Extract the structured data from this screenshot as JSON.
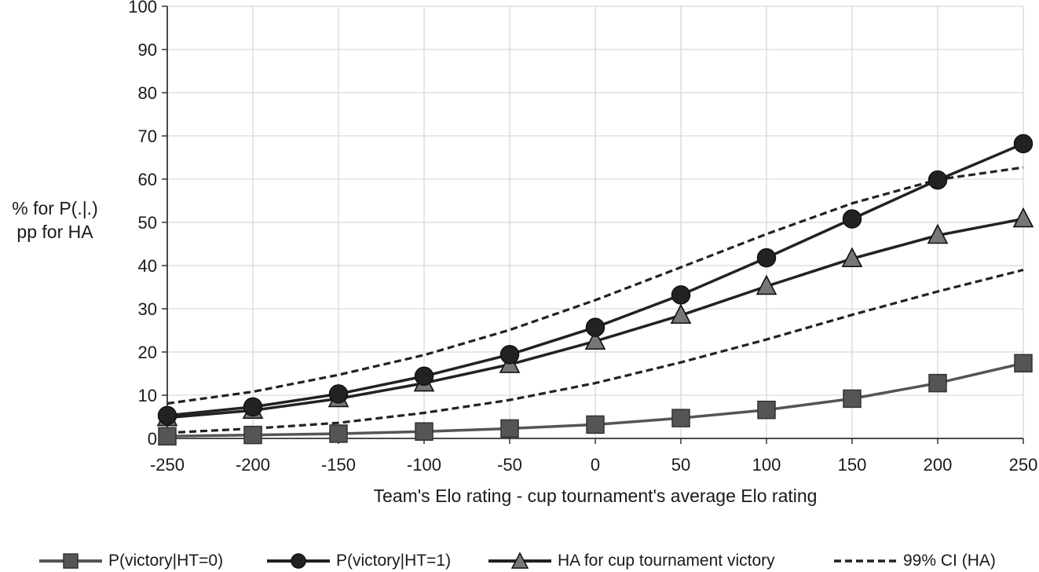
{
  "chart_data": {
    "type": "line",
    "xlabel": "Team's Elo rating - cup tournament's average Elo rating",
    "ylabel_lines": [
      "% for P(.|.)",
      "pp for HA"
    ],
    "x": [
      -250,
      -200,
      -150,
      -100,
      -50,
      0,
      50,
      100,
      150,
      200,
      250
    ],
    "x_tick_labels": [
      "-250",
      "-200",
      "-150",
      "-100",
      "-50",
      "0",
      "50",
      "100",
      "150",
      "200",
      "250"
    ],
    "y_ticks": [
      0,
      10,
      20,
      30,
      40,
      50,
      60,
      70,
      80,
      90,
      100
    ],
    "xlim": [
      -250,
      250
    ],
    "ylim": [
      0,
      100
    ],
    "grid": true,
    "legend_position": "bottom",
    "series": [
      {
        "name": "P(victory|HT=0)",
        "marker": "square",
        "style": "solid",
        "color": "#555555",
        "values": [
          0.5,
          0.8,
          1.1,
          1.6,
          2.3,
          3.2,
          4.7,
          6.6,
          9.2,
          12.8,
          17.4
        ]
      },
      {
        "name": "P(victory|HT=1)",
        "marker": "circle",
        "style": "solid",
        "color": "#222222",
        "values": [
          5.3,
          7.3,
          10.3,
          14.4,
          19.4,
          25.7,
          33.2,
          41.8,
          50.8,
          59.8,
          68.2
        ]
      },
      {
        "name": "HA for cup tournament victory",
        "marker": "triangle",
        "style": "solid",
        "color": "#222222",
        "values": [
          4.8,
          6.5,
          9.2,
          12.8,
          17.1,
          22.5,
          28.5,
          35.2,
          41.6,
          47.0,
          50.8
        ]
      },
      {
        "name": "99% CI (HA)",
        "marker": "none",
        "style": "dashed",
        "color": "#222222",
        "upper": [
          8.1,
          10.8,
          14.7,
          19.3,
          25.1,
          32.0,
          39.6,
          47.3,
          54.4,
          59.9,
          62.7
        ],
        "lower": [
          1.3,
          2.3,
          3.6,
          5.9,
          8.9,
          12.8,
          17.6,
          22.9,
          28.6,
          34.0,
          39.0
        ]
      }
    ]
  }
}
